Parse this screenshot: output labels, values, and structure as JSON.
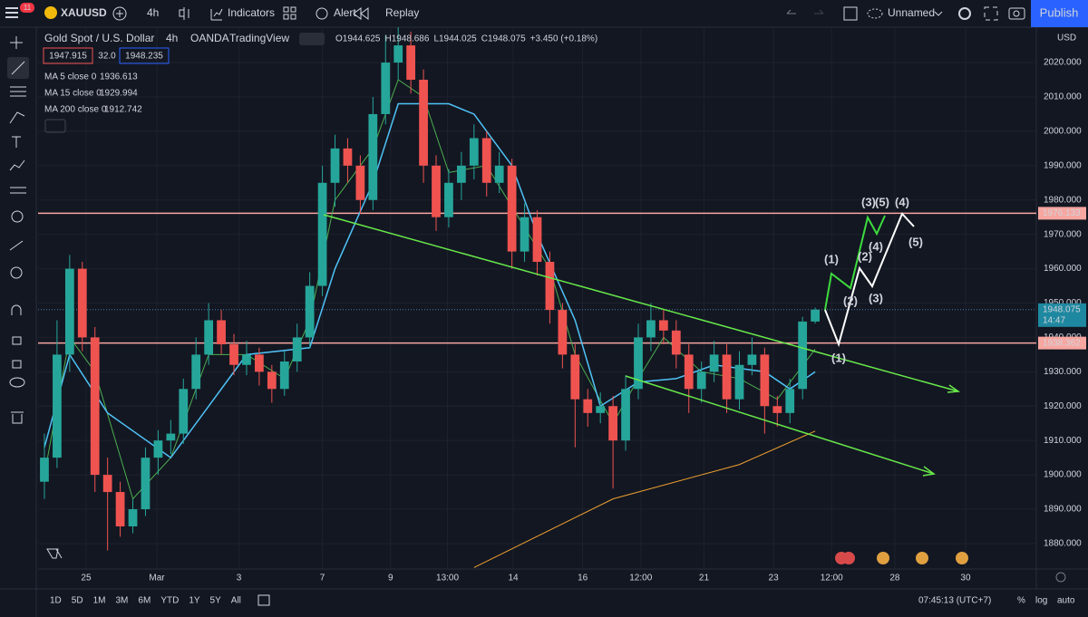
{
  "toolbar": {
    "badge": "11",
    "symbol": "XAUUSD",
    "interval": "4h",
    "indicators": "Indicators",
    "alert": "Alert",
    "replay": "Replay",
    "layout_name": "Unnamed",
    "publish": "Publish"
  },
  "legend": {
    "title": "Gold Spot / U.S. Dollar",
    "interval": "4h",
    "exchange": "OANDA",
    "source": "TradingView",
    "ohlc": [
      "O1944.625",
      "H1948.686",
      "L1944.025",
      "C1948.075",
      "+3.450 (+0.18%)"
    ],
    "bid": "1947.915",
    "spread": "32.0",
    "ask": "1948.235"
  },
  "chart_data": {
    "type": "candlestick",
    "currency": "USD",
    "countdown": "14:47",
    "ylim": [
      1872.6,
      2030.3
    ],
    "yticks": [
      {
        "value": 1880,
        "label": "1880.000"
      },
      {
        "value": 1890,
        "label": "1890.000"
      },
      {
        "value": 1900,
        "label": "1900.000"
      },
      {
        "value": 1910,
        "label": "1910.000"
      },
      {
        "value": 1920,
        "label": "1920.000"
      },
      {
        "value": 1930,
        "label": "1930.000"
      },
      {
        "value": 1940,
        "label": "1940.000"
      },
      {
        "value": 1950,
        "label": "1950.000"
      },
      {
        "value": 1960,
        "label": "1960.000"
      },
      {
        "value": 1970,
        "label": "1970.000"
      },
      {
        "value": 1980,
        "label": "1980.000"
      },
      {
        "value": 1990,
        "label": "1990.000"
      },
      {
        "value": 2000,
        "label": "2000.000"
      },
      {
        "value": 2010,
        "label": "2010.000"
      },
      {
        "value": 2020,
        "label": "2020.000"
      }
    ],
    "xlim": [
      -0.5,
      78.5
    ],
    "xticks": [
      {
        "value": 3.3,
        "label": "25"
      },
      {
        "value": 8.9,
        "label": "Mar"
      },
      {
        "value": 15.4,
        "label": "3"
      },
      {
        "value": 22,
        "label": "7"
      },
      {
        "value": 27.4,
        "label": "9"
      },
      {
        "value": 31.9,
        "label": "13:00"
      },
      {
        "value": 37.1,
        "label": "14"
      },
      {
        "value": 42.6,
        "label": "16"
      },
      {
        "value": 47.2,
        "label": "12:00"
      },
      {
        "value": 52.2,
        "label": "21"
      },
      {
        "value": 57.7,
        "label": "23"
      },
      {
        "value": 62.3,
        "label": "12:00"
      },
      {
        "value": 67.3,
        "label": "28"
      },
      {
        "value": 72.9,
        "label": "30"
      }
    ],
    "up_color": "#26a69a",
    "down_color": "#ef5350",
    "candles": [
      [
        1898,
        1912,
        1893,
        1905
      ],
      [
        1905,
        1945,
        1902,
        1935
      ],
      [
        1935,
        1964,
        1930,
        1960
      ],
      [
        1960,
        1962,
        1936,
        1940
      ],
      [
        1940,
        1943,
        1895,
        1900
      ],
      [
        1900,
        1905,
        1878,
        1895
      ],
      [
        1895,
        1898,
        1882,
        1885
      ],
      [
        1885,
        1893,
        1883,
        1890
      ],
      [
        1890,
        1908,
        1888,
        1905
      ],
      [
        1905,
        1913,
        1900,
        1910
      ],
      [
        1910,
        1916,
        1906,
        1912
      ],
      [
        1912,
        1928,
        1909,
        1925
      ],
      [
        1925,
        1940,
        1922,
        1935
      ],
      [
        1935,
        1950,
        1932,
        1945
      ],
      [
        1945,
        1948,
        1935,
        1938
      ],
      [
        1938,
        1941,
        1929,
        1932
      ],
      [
        1932,
        1939,
        1929,
        1935
      ],
      [
        1935,
        1937,
        1926,
        1930
      ],
      [
        1930,
        1932,
        1921,
        1925
      ],
      [
        1925,
        1936,
        1923,
        1933
      ],
      [
        1933,
        1944,
        1930,
        1940
      ],
      [
        1940,
        1959,
        1937,
        1955
      ],
      [
        1955,
        1990,
        1952,
        1985
      ],
      [
        1985,
        1999,
        1978,
        1995
      ],
      [
        1995,
        1998,
        1985,
        1990
      ],
      [
        1990,
        1993,
        1976,
        1980
      ],
      [
        1980,
        2010,
        1977,
        2005
      ],
      [
        2005,
        2028,
        2002,
        2020
      ],
      [
        2020,
        2031,
        2015,
        2025
      ],
      [
        2025,
        2029,
        2011,
        2015
      ],
      [
        2015,
        2018,
        1985,
        1990
      ],
      [
        1990,
        1993,
        1971,
        1975
      ],
      [
        1975,
        1989,
        1972,
        1985
      ],
      [
        1985,
        1994,
        1980,
        1990
      ],
      [
        1990,
        2002,
        1986,
        1998
      ],
      [
        1998,
        2000,
        1981,
        1985
      ],
      [
        1985,
        1994,
        1982,
        1990
      ],
      [
        1990,
        1992,
        1960,
        1965
      ],
      [
        1965,
        1979,
        1962,
        1975
      ],
      [
        1975,
        1977,
        1958,
        1962
      ],
      [
        1962,
        1965,
        1944,
        1948
      ],
      [
        1948,
        1950,
        1931,
        1935
      ],
      [
        1935,
        1938,
        1908,
        1922
      ],
      [
        1922,
        1925,
        1914,
        1918
      ],
      [
        1918,
        1924,
        1915,
        1920
      ],
      [
        1920,
        1923,
        1896,
        1910
      ],
      [
        1910,
        1929,
        1907,
        1925
      ],
      [
        1925,
        1944,
        1922,
        1940
      ],
      [
        1940,
        1950,
        1936,
        1945
      ],
      [
        1945,
        1948,
        1938,
        1942
      ],
      [
        1942,
        1945,
        1931,
        1935
      ],
      [
        1935,
        1938,
        1918,
        1925
      ],
      [
        1925,
        1933,
        1921,
        1930
      ],
      [
        1930,
        1939,
        1927,
        1935
      ],
      [
        1935,
        1938,
        1918,
        1922
      ],
      [
        1922,
        1936,
        1919,
        1932
      ],
      [
        1932,
        1940,
        1929,
        1935
      ],
      [
        1935,
        1937,
        1912,
        1920
      ],
      [
        1920,
        1923,
        1914,
        1918
      ],
      [
        1918,
        1928,
        1915,
        1925
      ],
      [
        1925,
        1946,
        1922,
        1944.625
      ],
      [
        1944.625,
        1948.686,
        1944.025,
        1948.075
      ]
    ],
    "last_price": 1948.075,
    "series": [
      {
        "name": "MA 5 close 0",
        "last": "1936.613",
        "color": "#4caf50",
        "x": [
          0,
          2,
          4,
          7,
          10,
          13,
          16,
          19,
          21,
          23,
          26,
          28,
          30,
          32,
          35,
          37,
          40,
          42,
          45,
          47,
          49,
          52,
          55,
          58,
          61
        ],
        "values": [
          1900,
          1940,
          1930,
          1893,
          1905,
          1935,
          1935,
          1928,
          1945,
          1980,
          1995,
          2015,
          2010,
          1988,
          1990,
          1978,
          1960,
          1935,
          1915,
          1928,
          1940,
          1930,
          1928,
          1922,
          1936.613
        ]
      },
      {
        "name": "MA 15 close 0",
        "last": "1929.994",
        "color": "#4fc3f7",
        "x": [
          0,
          2,
          5,
          10,
          13,
          16,
          21,
          23,
          26,
          28,
          32,
          34,
          37,
          39,
          42,
          44,
          47,
          50,
          53,
          57,
          59,
          61
        ],
        "values": [
          1908,
          1935,
          1918,
          1905,
          1920,
          1935,
          1937,
          1960,
          1985,
          2008,
          2008,
          2005,
          1990,
          1970,
          1945,
          1920,
          1927,
          1928,
          1932,
          1930,
          1925,
          1929.994
        ]
      },
      {
        "name": "MA 200 close 0",
        "last": "1912.742",
        "color": "#f0a030",
        "x": [
          34,
          45,
          55,
          61
        ],
        "values": [
          1873,
          1893,
          1903,
          1912.742
        ]
      }
    ],
    "hlines": [
      {
        "value": 1976.133,
        "color": "#f7a6a0"
      },
      {
        "value": 1938.362,
        "color": "#f7a6a0"
      }
    ],
    "annotations": [
      {
        "text": "(1)",
        "color": "#3ddc3d"
      },
      {
        "text": "(2)",
        "color": "#3ddc3d"
      },
      {
        "text": "(3)",
        "color": "#3ddc3d"
      },
      {
        "text": "(4)",
        "color": "#3ddc3d"
      },
      {
        "text": "(5)",
        "color": "#3ddc3d"
      },
      {
        "text": "(1)",
        "color": "#ffffff"
      },
      {
        "text": "(2)",
        "color": "#ffffff"
      },
      {
        "text": "(3)",
        "color": "#ffffff"
      },
      {
        "text": "(4)",
        "color": "#ffffff"
      },
      {
        "text": "(5)",
        "color": "#ffffff"
      }
    ]
  },
  "bottom_bar": {
    "ranges": [
      "1D",
      "5D",
      "1M",
      "3M",
      "6M",
      "YTD",
      "1Y",
      "5Y",
      "All"
    ],
    "clock": "07:45:13 (UTC+7)",
    "percent": "%",
    "log": "log",
    "auto": "auto"
  }
}
